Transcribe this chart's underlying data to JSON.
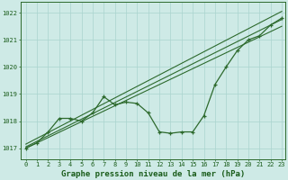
{
  "title": "Graphe pression niveau de la mer (hPa)",
  "x_values": [
    0,
    1,
    2,
    3,
    4,
    5,
    6,
    7,
    8,
    9,
    10,
    11,
    12,
    13,
    14,
    15,
    16,
    17,
    18,
    19,
    20,
    21,
    22,
    23
  ],
  "pressure_line": [
    1017.0,
    1017.2,
    1017.6,
    1018.1,
    1018.1,
    1018.0,
    1018.3,
    1018.9,
    1018.6,
    1018.7,
    1018.65,
    1018.3,
    1017.6,
    1017.55,
    1017.6,
    1017.6,
    1018.2,
    1019.35,
    1020.0,
    1020.6,
    1021.0,
    1021.15,
    1021.55,
    1021.8
  ],
  "trend_lines": [
    [
      [
        0,
        1017.0
      ],
      [
        23,
        1021.5
      ]
    ],
    [
      [
        0,
        1017.05
      ],
      [
        23,
        1021.75
      ]
    ],
    [
      [
        0,
        1017.15
      ],
      [
        23,
        1022.05
      ]
    ]
  ],
  "ylim": [
    1016.6,
    1022.4
  ],
  "xlim": [
    -0.5,
    23.3
  ],
  "yticks": [
    1017,
    1018,
    1019,
    1020,
    1021,
    1022
  ],
  "xticks": [
    0,
    1,
    2,
    3,
    4,
    5,
    6,
    7,
    8,
    9,
    10,
    11,
    12,
    13,
    14,
    15,
    16,
    17,
    18,
    19,
    20,
    21,
    22,
    23
  ],
  "line_color": "#2d6a2d",
  "bg_color": "#ceeae6",
  "grid_color": "#aad4ce",
  "text_color": "#1a5c1a",
  "title_fontsize": 6.5,
  "tick_fontsize": 5.0,
  "marker": "P",
  "marker_size": 2.2
}
